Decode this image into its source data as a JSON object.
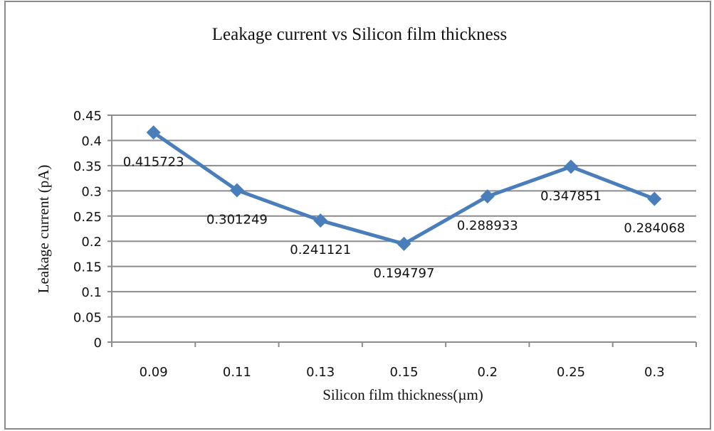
{
  "chart_data": {
    "type": "line",
    "title": "Leakage current vs Silicon film thickness",
    "xlabel": "Silicon film thickness(µm)",
    "ylabel": "Leakage current (pA)",
    "categories": [
      "0.09",
      "0.11",
      "0.13",
      "0.15",
      "0.2",
      "0.25",
      "0.3"
    ],
    "series": [
      {
        "name": "Leakage current",
        "values": [
          0.415723,
          0.301249,
          0.241121,
          0.194797,
          0.288933,
          0.347851,
          0.284068
        ],
        "labels": [
          "0.415723",
          "0.301249",
          "0.241121",
          "0.194797",
          "0.288933",
          "0.347851",
          "0.284068"
        ],
        "color": "#4a7ebb",
        "marker": "diamond"
      }
    ],
    "ylim": [
      0,
      0.45
    ],
    "yticks": [
      "0",
      "0.05",
      "0.1",
      "0.15",
      "0.2",
      "0.25",
      "0.3",
      "0.35",
      "0.4",
      "0.45"
    ],
    "grid": true,
    "legend": "none"
  }
}
